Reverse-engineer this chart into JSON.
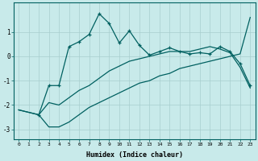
{
  "xlabel": "Humidex (Indice chaleur)",
  "ylabel": "",
  "bg_color": "#c8eaea",
  "grid_color": "#a8cece",
  "line_color": "#006060",
  "xlim": [
    -0.5,
    23.5
  ],
  "ylim": [
    -3.4,
    2.2
  ],
  "yticks": [
    -3,
    -2,
    -1,
    0,
    1
  ],
  "xticks": [
    0,
    1,
    2,
    3,
    4,
    5,
    6,
    7,
    8,
    9,
    10,
    11,
    12,
    13,
    14,
    15,
    16,
    17,
    18,
    19,
    20,
    21,
    22,
    23
  ],
  "line1_x": [
    0,
    1,
    2,
    3,
    4,
    5,
    6,
    7,
    8,
    9,
    10,
    11,
    12,
    13,
    14,
    15,
    16,
    17,
    18,
    19,
    20,
    21,
    22,
    23
  ],
  "line1_y": [
    -2.2,
    -2.3,
    -2.4,
    -2.9,
    -2.9,
    -2.7,
    -2.4,
    -2.1,
    -1.9,
    -1.7,
    -1.5,
    -1.3,
    -1.1,
    -1.0,
    -0.8,
    -0.7,
    -0.5,
    -0.4,
    -0.3,
    -0.2,
    -0.1,
    0.0,
    0.1,
    1.6
  ],
  "line2_x": [
    0,
    1,
    2,
    3,
    4,
    5,
    6,
    7,
    8,
    9,
    10,
    11,
    12,
    13,
    14,
    15,
    16,
    17,
    18,
    19,
    20,
    21,
    22,
    23
  ],
  "line2_y": [
    -2.2,
    -2.3,
    -2.4,
    -1.9,
    -2.0,
    -1.7,
    -1.4,
    -1.2,
    -0.9,
    -0.6,
    -0.4,
    -0.2,
    -0.1,
    0.0,
    0.1,
    0.2,
    0.2,
    0.2,
    0.3,
    0.4,
    0.3,
    0.15,
    -0.45,
    -1.3
  ],
  "line3_x": [
    2,
    3,
    4,
    5,
    6,
    7,
    8,
    9,
    10,
    11,
    12,
    13,
    14,
    15,
    16,
    17,
    18,
    19,
    20,
    21,
    22,
    23
  ],
  "line3_y": [
    -2.4,
    -1.2,
    -1.2,
    0.4,
    0.6,
    0.9,
    1.75,
    1.35,
    0.55,
    1.05,
    0.45,
    0.05,
    0.2,
    0.35,
    0.2,
    0.1,
    0.15,
    0.1,
    0.4,
    0.2,
    -0.3,
    -1.2
  ]
}
